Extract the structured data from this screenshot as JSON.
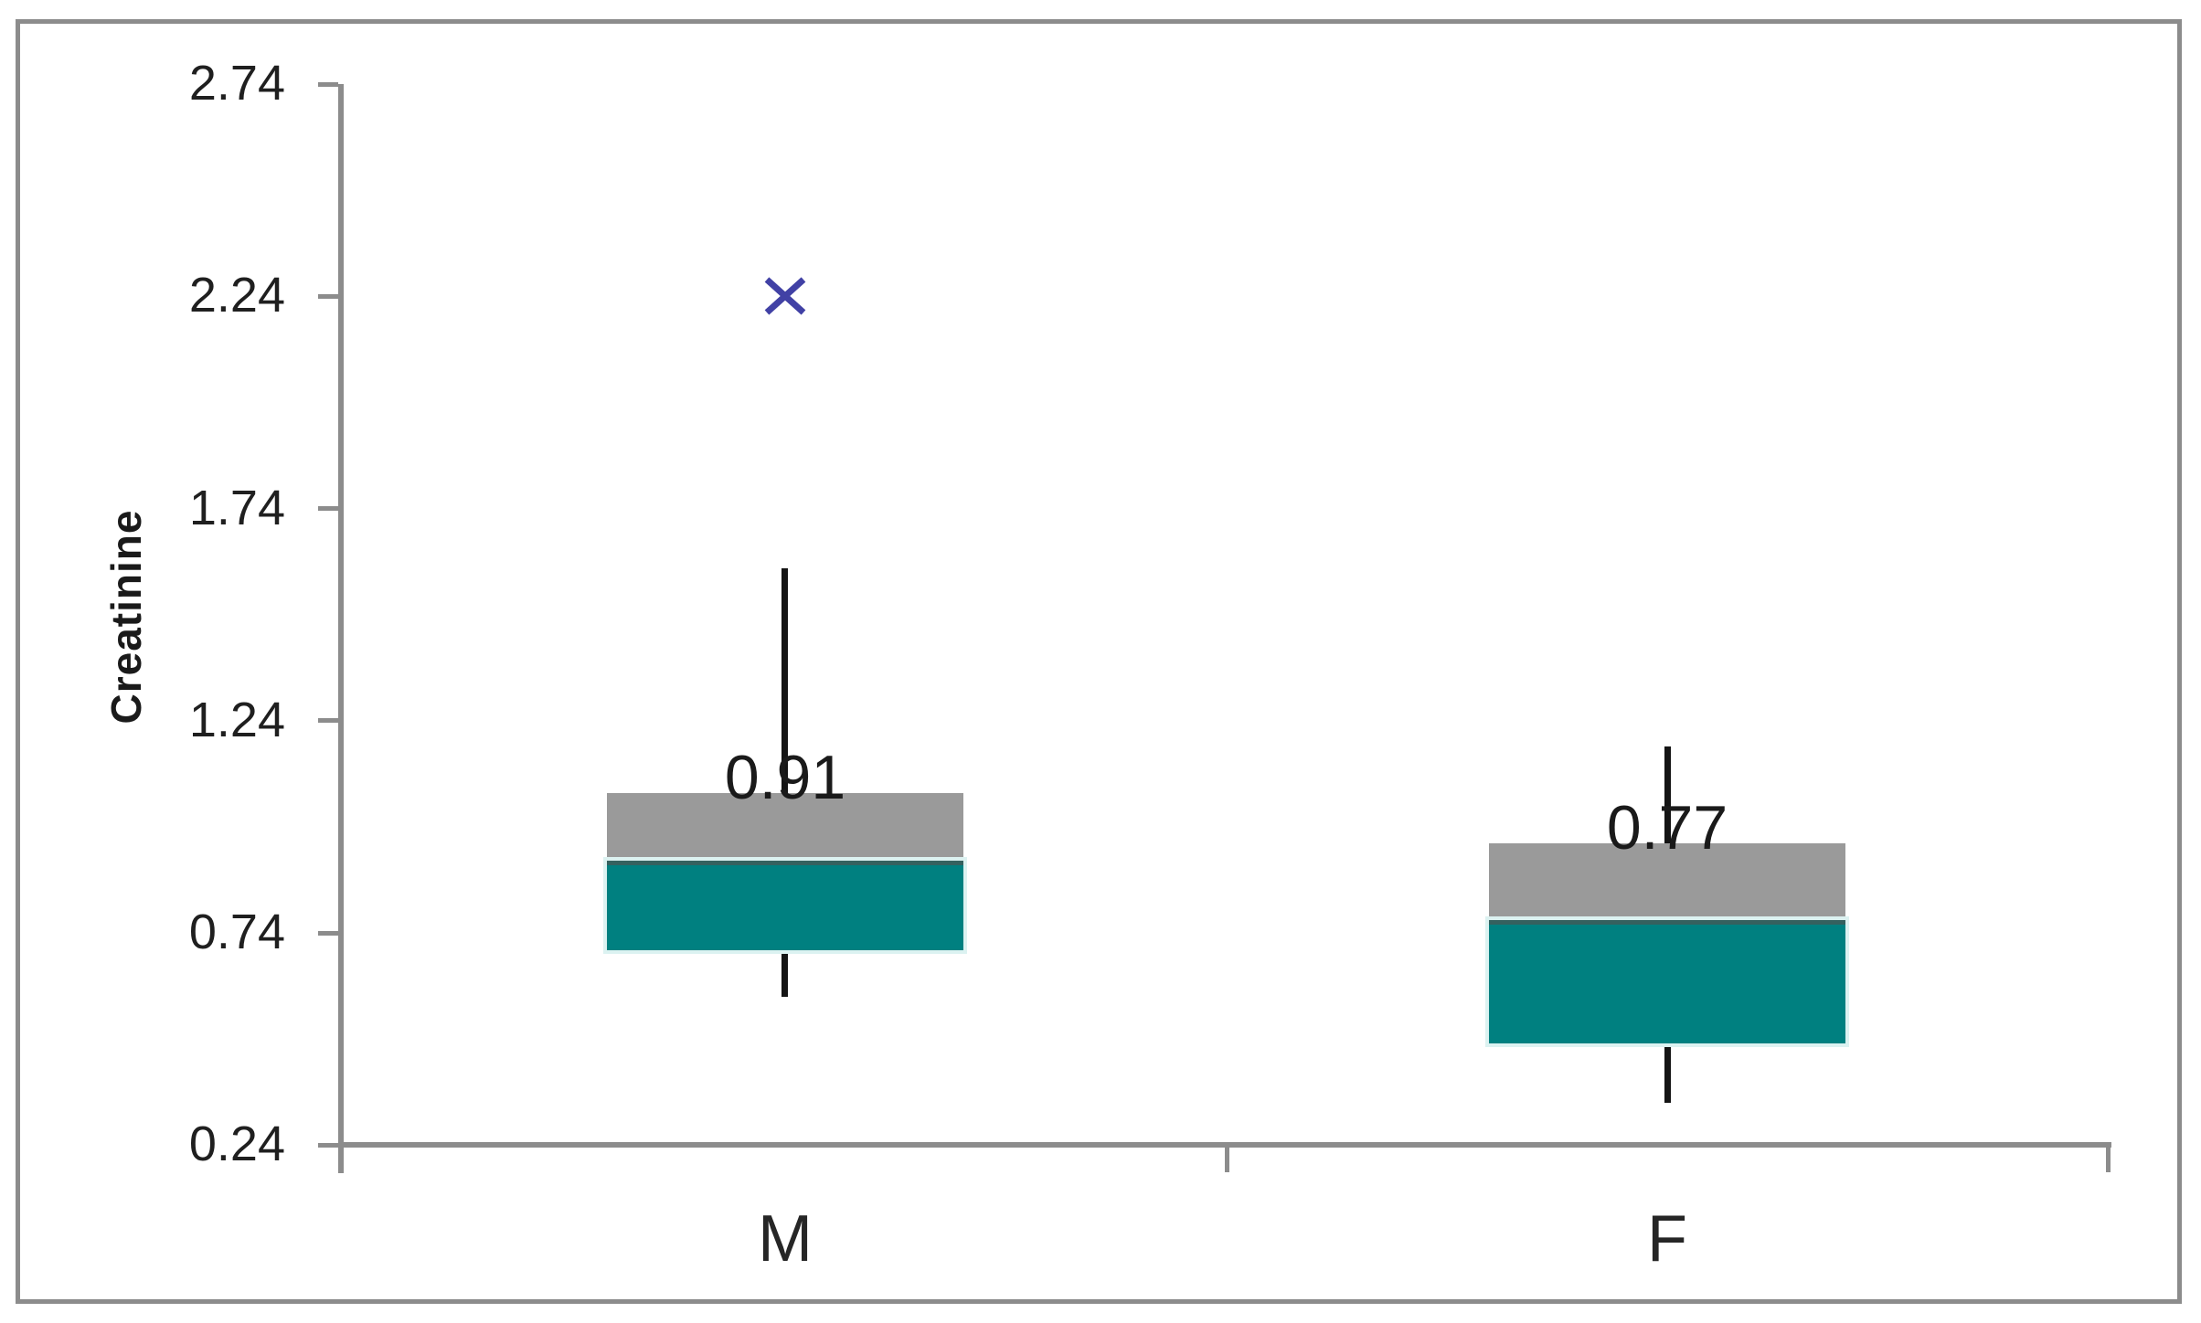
{
  "chart_data": {
    "type": "boxplot",
    "title": "",
    "ylabel": "Creatinine",
    "xlabel": "",
    "categories": [
      "M",
      "F"
    ],
    "ytick_labels": [
      "2.74",
      "2.24",
      "1.74",
      "1.24",
      "0.74",
      "0.24"
    ],
    "yticks": [
      2.74,
      2.24,
      1.74,
      1.24,
      0.74,
      0.24
    ],
    "ylim": [
      0.24,
      2.74
    ],
    "grid": false,
    "legend": "none",
    "series": [
      {
        "name": "M",
        "whisker_high": 1.6,
        "q3": 1.07,
        "median": 0.91,
        "median_label": "0.91",
        "q1": 0.7,
        "whisker_low": 0.59,
        "outliers": [
          2.24
        ]
      },
      {
        "name": "F",
        "whisker_high": 1.18,
        "q3": 0.95,
        "median": 0.77,
        "median_label": "0.77",
        "q1": 0.48,
        "whisker_low": 0.34,
        "outliers": []
      }
    ],
    "colors": {
      "upper_box": "#9a9a9a",
      "lower_box": "#008080",
      "lower_box_top_edge": "#35615f",
      "lower_box_glow": "#dcf2f1",
      "whisker": "#141414",
      "outlier_marker": "#4141a5",
      "axis": "#8c8c8c",
      "text": "#1f1f1f"
    }
  }
}
